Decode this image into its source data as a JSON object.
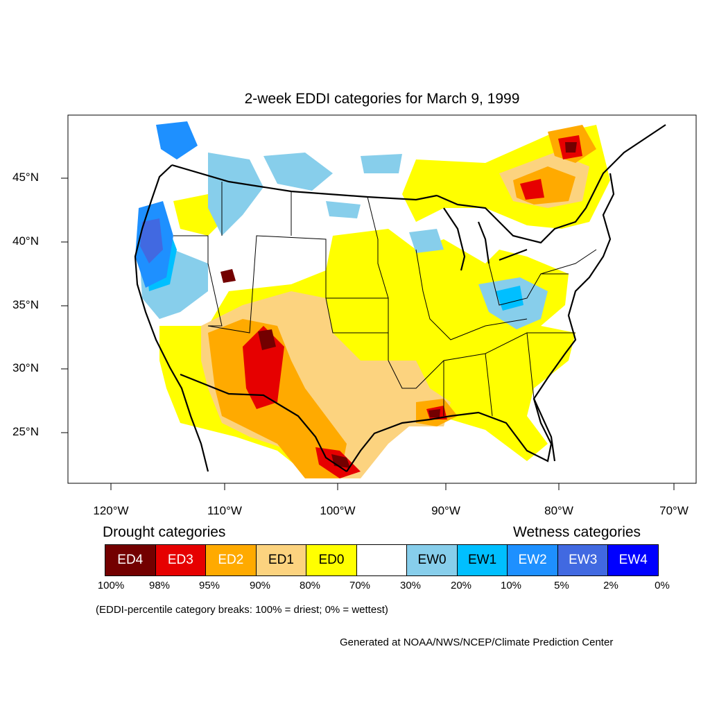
{
  "title": "2-week EDDI categories for March 9, 1999",
  "lat_labels": [
    "45°N",
    "40°N",
    "35°N",
    "30°N",
    "25°N"
  ],
  "lon_labels": [
    "120°W",
    "110°W",
    "100°W",
    "90°W",
    "80°W",
    "70°W"
  ],
  "legend": {
    "drought_title": "Drought categories",
    "wetness_title": "Wetness categories",
    "categories": [
      {
        "label": "ED4",
        "color": "#730000",
        "text_color": "#ffffff"
      },
      {
        "label": "ED3",
        "color": "#e60000",
        "text_color": "#ffffff"
      },
      {
        "label": "ED2",
        "color": "#ffaa00",
        "text_color": "#ffffff"
      },
      {
        "label": "ED1",
        "color": "#fcd37f",
        "text_color": "#000000"
      },
      {
        "label": "ED0",
        "color": "#ffff00",
        "text_color": "#000000"
      },
      {
        "label": "",
        "color": "#ffffff",
        "text_color": "#000000"
      },
      {
        "label": "EW0",
        "color": "#87ceeb",
        "text_color": "#000000"
      },
      {
        "label": "EW1",
        "color": "#00bfff",
        "text_color": "#000000"
      },
      {
        "label": "EW2",
        "color": "#1e90ff",
        "text_color": "#ffffff"
      },
      {
        "label": "EW3",
        "color": "#4169e1",
        "text_color": "#ffffff"
      },
      {
        "label": "EW4",
        "color": "#0000ff",
        "text_color": "#ffffff"
      }
    ],
    "breaks": [
      "100%",
      "98%",
      "95%",
      "90%",
      "80%",
      "70%",
      "30%",
      "20%",
      "10%",
      "5%",
      "2%",
      "0%"
    ]
  },
  "footnote": "(EDDI-percentile category breaks: 100% = driest; 0% = wettest)",
  "credit": "Generated at NOAA/NWS/NCEP/Climate Prediction Center"
}
